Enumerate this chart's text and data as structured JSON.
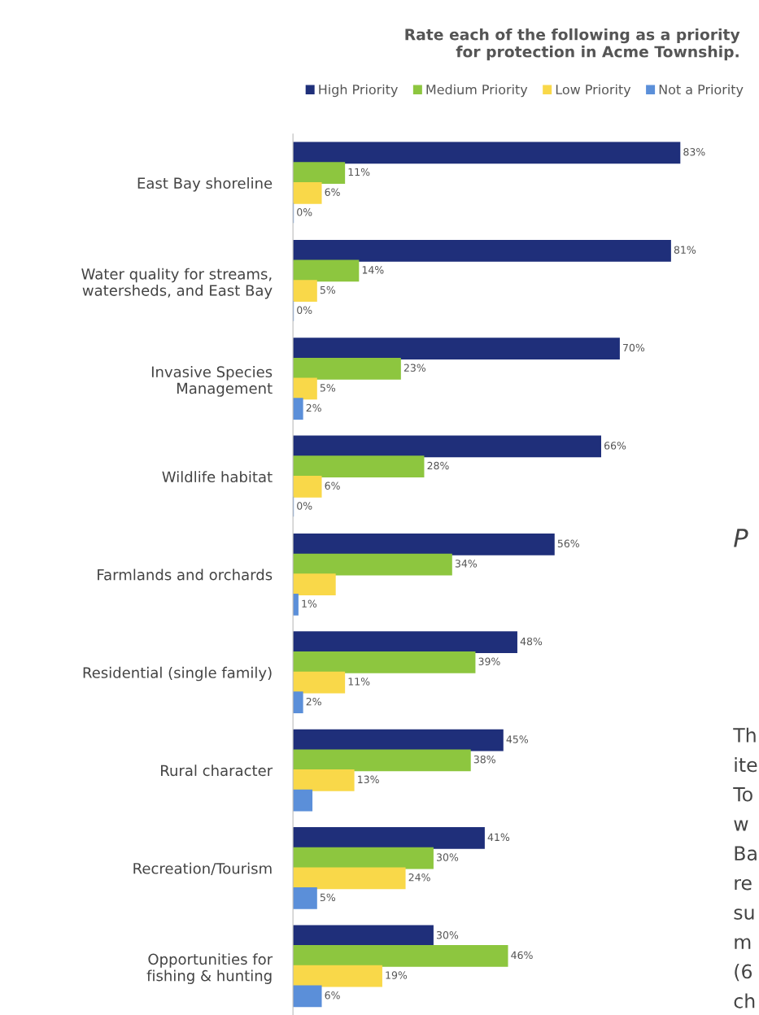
{
  "chart_data": {
    "type": "bar",
    "orientation": "horizontal",
    "title": "Rate each of the following as a priority\nfor protection in Acme Township.",
    "categories": [
      "East Bay shoreline",
      "Water quality for streams,\nwatersheds, and East Bay",
      "Invasive Species\nManagement",
      "Wildlife habitat",
      "Farmlands and orchards",
      "Residential (single family)",
      "Rural character",
      "Recreation/Tourism",
      "Opportunities for\nfishing & hunting"
    ],
    "series": [
      {
        "name": "High Priority",
        "color": "#1f2f7a",
        "values": [
          83,
          81,
          70,
          66,
          56,
          48,
          45,
          41,
          30
        ],
        "value_labels": [
          "83%",
          "81%",
          "70%",
          "66%",
          "56%",
          "48%",
          "45%",
          "41%",
          "30%"
        ]
      },
      {
        "name": "Medium Priority",
        "color": "#8dc63f",
        "values": [
          11,
          14,
          23,
          28,
          34,
          39,
          38,
          30,
          46
        ],
        "value_labels": [
          "11%",
          "14%",
          "23%",
          "28%",
          "34%",
          "39%",
          "38%",
          "30%",
          "46%"
        ]
      },
      {
        "name": "Low Priority",
        "color": "#f9d849",
        "values": [
          6,
          5,
          5,
          6,
          9,
          11,
          13,
          24,
          19
        ],
        "value_labels": [
          "6%",
          "5%",
          "5%",
          "6%",
          null,
          "11%",
          "13%",
          "24%",
          "19%"
        ]
      },
      {
        "name": "Not a Priority",
        "color": "#5b8fd9",
        "values": [
          0,
          0,
          2,
          0,
          1,
          2,
          4,
          5,
          6
        ],
        "value_labels": [
          "0%",
          "0%",
          "2%",
          "0%",
          "1%",
          "2%",
          null,
          "5%",
          "6%"
        ]
      }
    ],
    "legend": "top",
    "grid": false,
    "tick_labels": "y",
    "annotations": [
      "P",
      "Th\nite\nTo\nw\nBa\nre\nsu\nm\n(6\nch"
    ]
  }
}
